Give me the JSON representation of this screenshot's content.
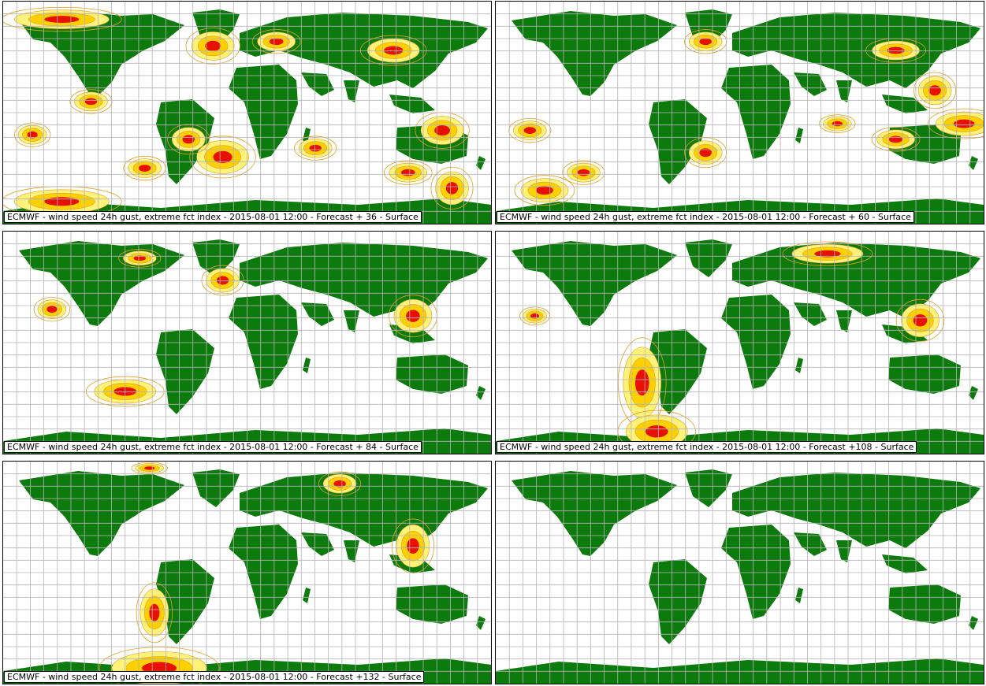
{
  "colors": {
    "land": "#0d7a0d",
    "grid": "#b4b4b4",
    "contour": "#e0a020",
    "fill_mid": "#ffd000",
    "fill_low": "#fff27a",
    "fill_high": "#e81000",
    "label": "#b07000"
  },
  "panels": [
    {
      "id": "fc36",
      "caption": "ECMWF - wind speed 24h gust, extreme fct index - 2015-08-01 12:00 - Forecast + 36 - Surface",
      "hotspots": [
        [
          0.12,
          0.08,
          40,
          8
        ],
        [
          0.43,
          0.2,
          18,
          12
        ],
        [
          0.18,
          0.45,
          14,
          8
        ],
        [
          0.45,
          0.7,
          22,
          14
        ],
        [
          0.38,
          0.62,
          14,
          10
        ],
        [
          0.29,
          0.75,
          14,
          8
        ],
        [
          0.12,
          0.9,
          40,
          10
        ],
        [
          0.9,
          0.58,
          18,
          12
        ],
        [
          0.92,
          0.84,
          14,
          14
        ],
        [
          0.64,
          0.66,
          14,
          8
        ],
        [
          0.06,
          0.6,
          12,
          8
        ],
        [
          0.83,
          0.77,
          16,
          8
        ],
        [
          0.56,
          0.18,
          16,
          8
        ],
        [
          0.8,
          0.22,
          22,
          10
        ]
      ]
    },
    {
      "id": "fc60",
      "caption": "ECMWF - wind speed 24h gust, extreme fct index - 2015-08-01 12:00 - Forecast + 60 - Surface",
      "hotspots": [
        [
          0.43,
          0.18,
          14,
          8
        ],
        [
          0.82,
          0.22,
          20,
          8
        ],
        [
          0.9,
          0.4,
          14,
          12
        ],
        [
          0.96,
          0.55,
          24,
          10
        ],
        [
          0.18,
          0.77,
          14,
          8
        ],
        [
          0.43,
          0.68,
          14,
          10
        ],
        [
          0.82,
          0.62,
          16,
          8
        ],
        [
          0.07,
          0.58,
          14,
          8
        ],
        [
          0.7,
          0.55,
          12,
          6
        ],
        [
          0.1,
          0.85,
          20,
          10
        ]
      ]
    },
    {
      "id": "fc84",
      "caption": "ECMWF - wind speed 24h gust, extreme fct index - 2015-08-01 12:00 - Forecast + 84 - Surface",
      "hotspots": [
        [
          0.25,
          0.72,
          26,
          10
        ],
        [
          0.84,
          0.38,
          16,
          14
        ],
        [
          0.1,
          0.35,
          12,
          8
        ],
        [
          0.45,
          0.22,
          14,
          10
        ],
        [
          0.28,
          0.12,
          14,
          6
        ]
      ]
    },
    {
      "id": "fc108",
      "caption": "ECMWF - wind speed 24h gust, extreme fct index - 2015-08-01 12:00 - Forecast +108 - Surface",
      "hotspots": [
        [
          0.3,
          0.68,
          16,
          30
        ],
        [
          0.33,
          0.9,
          26,
          14
        ],
        [
          0.87,
          0.4,
          16,
          14
        ],
        [
          0.68,
          0.1,
          30,
          8
        ],
        [
          0.08,
          0.38,
          10,
          6
        ]
      ]
    },
    {
      "id": "fc132",
      "caption": "ECMWF - wind speed 24h gust, extreme fct index - 2015-08-01 12:00 - Forecast +132 - Surface",
      "hotspots": [
        [
          0.84,
          0.38,
          14,
          18
        ],
        [
          0.32,
          0.93,
          40,
          14
        ],
        [
          0.31,
          0.68,
          12,
          20
        ],
        [
          0.69,
          0.1,
          14,
          8
        ],
        [
          0.3,
          0.03,
          12,
          4
        ]
      ]
    },
    {
      "id": "empty",
      "caption": "",
      "hotspots": []
    }
  ]
}
